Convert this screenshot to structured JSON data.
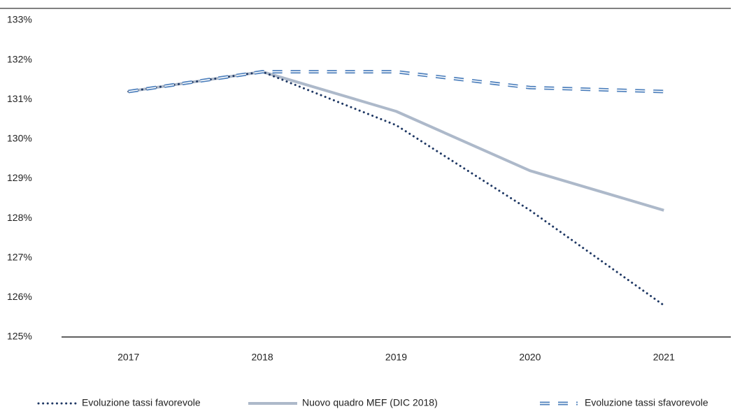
{
  "chart_data": {
    "type": "line",
    "categories": [
      "2017",
      "2018",
      "2019",
      "2020",
      "2021"
    ],
    "series": [
      {
        "name": "Evoluzione tassi favorevole",
        "color": "#1f3864",
        "style": "dotted",
        "values": [
          131.2,
          131.7,
          130.35,
          128.2,
          125.8
        ]
      },
      {
        "name": "Nuovo quadro MEF (DIC 2018)",
        "color": "#adb9ca",
        "style": "solid",
        "values": [
          131.2,
          131.7,
          130.7,
          129.2,
          128.2
        ]
      },
      {
        "name": "Evoluzione tassi sfavorevole",
        "color": "#4f81bd",
        "style": "dashed-double",
        "values": [
          131.2,
          131.7,
          131.7,
          131.3,
          131.2
        ]
      }
    ],
    "ylim": [
      125,
      133
    ],
    "yticks": [
      {
        "value": 125,
        "label": "125%"
      },
      {
        "value": 126,
        "label": "126%"
      },
      {
        "value": 127,
        "label": "127%"
      },
      {
        "value": 128,
        "label": "128%"
      },
      {
        "value": 129,
        "label": "129%"
      },
      {
        "value": 130,
        "label": "130%"
      },
      {
        "value": 131,
        "label": "131%"
      },
      {
        "value": 132,
        "label": "132%"
      },
      {
        "value": 133,
        "label": "133%"
      }
    ],
    "grid": false,
    "legend": "bottom"
  }
}
